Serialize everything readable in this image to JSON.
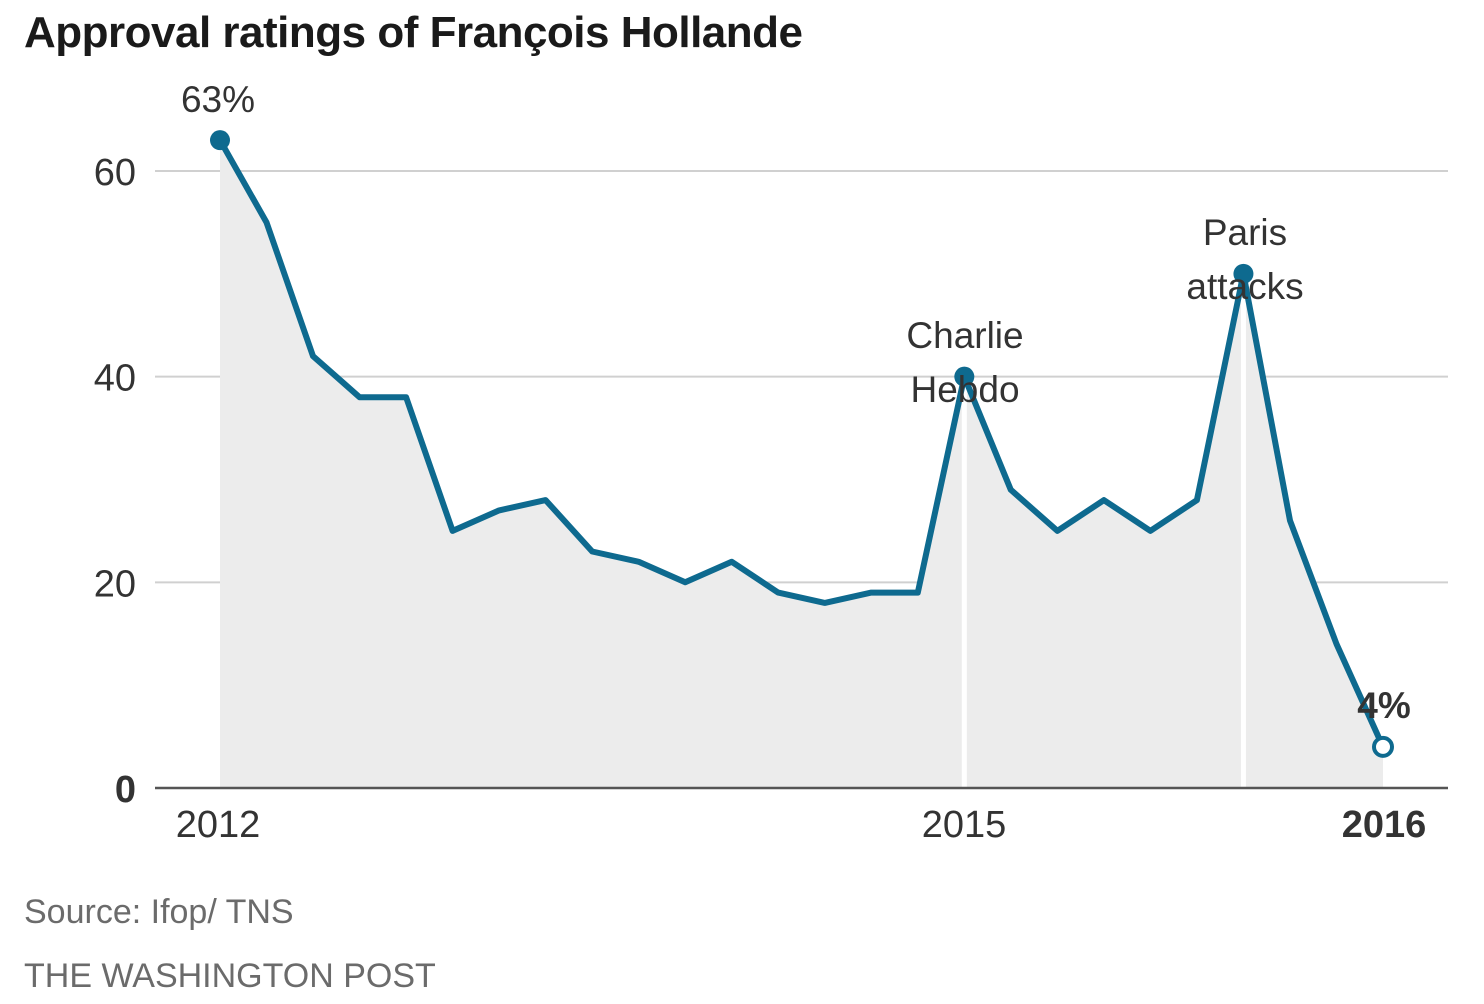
{
  "header": {
    "title": "Approval ratings of François Hollande"
  },
  "footer": {
    "source": "Source: Ifop/ TNS",
    "credit": "THE WASHINGTON POST"
  },
  "colors": {
    "line": "#0e6a8f",
    "area": "#ececec",
    "grid": "#d0d0d0",
    "axis": "#555555",
    "marker_line": "#ffffff"
  },
  "chart_data": {
    "type": "area",
    "title": "Approval ratings of François Hollande",
    "xlabel": "",
    "ylabel": "",
    "ylim": [
      0,
      63
    ],
    "y_ticks": [
      {
        "value": 0,
        "label": "0",
        "bold": true
      },
      {
        "value": 20,
        "label": "20",
        "bold": false
      },
      {
        "value": 40,
        "label": "40",
        "bold": false
      },
      {
        "value": 60,
        "label": "60",
        "bold": false
      }
    ],
    "x_ticks": [
      {
        "index": 0,
        "label": "2012",
        "bold": false
      },
      {
        "index": 16,
        "label": "2015",
        "bold": false
      },
      {
        "index": 25,
        "label": "2016",
        "bold": true
      }
    ],
    "grid": true,
    "series": [
      {
        "values": [
          63,
          55,
          42,
          38,
          38,
          25,
          27,
          28,
          23,
          22,
          20,
          22,
          19,
          18,
          19,
          19,
          40,
          29,
          25,
          28,
          25,
          28,
          50,
          26,
          14,
          4
        ]
      }
    ],
    "annotations": [
      {
        "index": 0,
        "lines": [
          "63%"
        ],
        "bold": false
      },
      {
        "index": 16,
        "lines": [
          "Charlie",
          "Hebdo"
        ],
        "bold": false
      },
      {
        "index": 22,
        "lines": [
          "Paris",
          "attacks"
        ],
        "bold": false
      },
      {
        "index": 25,
        "lines": [
          "4%"
        ],
        "bold": true
      }
    ],
    "event_markers": [
      16,
      22
    ],
    "highlight_points": [
      {
        "index": 0,
        "style": "filled"
      },
      {
        "index": 16,
        "style": "filled"
      },
      {
        "index": 22,
        "style": "filled"
      },
      {
        "index": 25,
        "style": "hollow"
      }
    ]
  }
}
